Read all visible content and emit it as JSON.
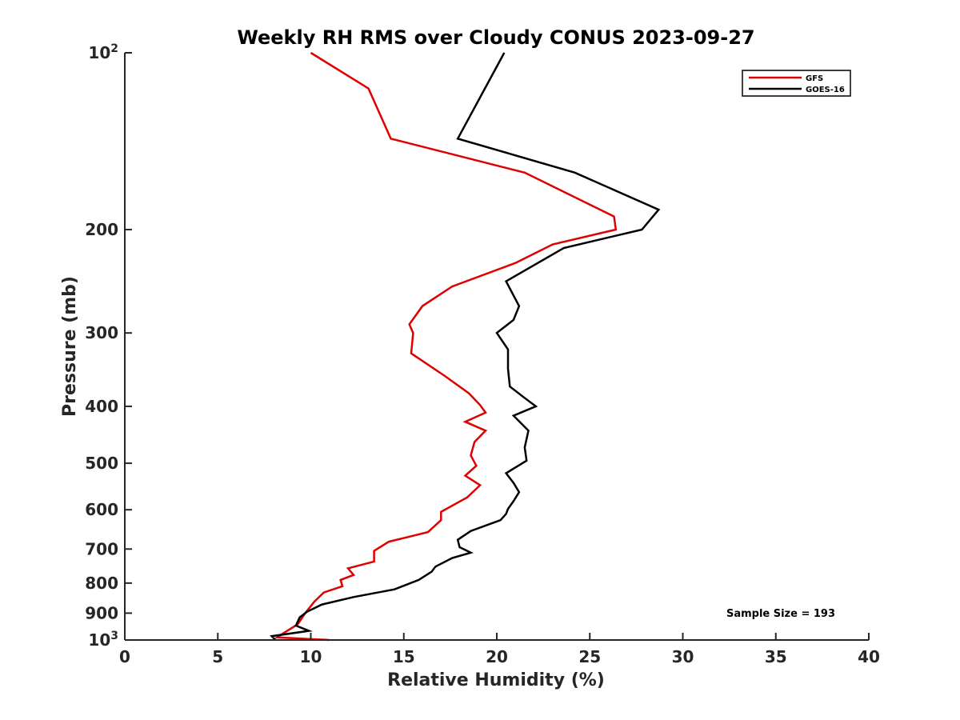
{
  "chart_data": {
    "type": "line",
    "title": "Weekly RH RMS over Cloudy CONUS 2023-09-27",
    "xlabel": "Relative Humidity (%)",
    "ylabel": "Pressure (mb)",
    "xlim": [
      0,
      40
    ],
    "ylim": [
      100,
      1000
    ],
    "yscale": "log",
    "y_reversed": true,
    "grid": false,
    "legend_position": "top-right",
    "xticks": [
      0,
      5,
      10,
      15,
      20,
      25,
      30,
      35,
      40
    ],
    "xtick_labels": [
      "0",
      "5",
      "10",
      "15",
      "20",
      "25",
      "30",
      "35",
      "40"
    ],
    "yticks": [
      {
        "value": 100,
        "label": "10",
        "sup": "2"
      },
      {
        "value": 200,
        "label": "200",
        "sup": ""
      },
      {
        "value": 300,
        "label": "300",
        "sup": ""
      },
      {
        "value": 400,
        "label": "400",
        "sup": ""
      },
      {
        "value": 500,
        "label": "500",
        "sup": ""
      },
      {
        "value": 600,
        "label": "600",
        "sup": ""
      },
      {
        "value": 700,
        "label": "700",
        "sup": ""
      },
      {
        "value": 800,
        "label": "800",
        "sup": ""
      },
      {
        "value": 900,
        "label": "900",
        "sup": ""
      },
      {
        "value": 1000,
        "label": "10",
        "sup": "3"
      }
    ],
    "series": [
      {
        "name": "GFS",
        "color": "#e00000",
        "x": [
          10.0,
          13.1,
          14.3,
          21.5,
          26.3,
          26.4,
          23.0,
          21.0,
          17.6,
          16.0,
          15.3,
          15.5,
          15.4,
          17.2,
          18.5,
          19.1,
          19.4,
          18.3,
          19.4,
          18.8,
          18.6,
          18.9,
          18.3,
          19.1,
          18.4,
          17.0,
          17.0,
          16.3,
          14.2,
          13.4,
          13.4,
          12.0,
          12.3,
          11.6,
          11.7,
          10.7,
          10.2,
          9.7,
          9.3,
          8.5,
          8.2,
          11.0
        ],
        "y": [
          100,
          115,
          140,
          160,
          190,
          200,
          212,
          228,
          250,
          270,
          290,
          300,
          325,
          355,
          380,
          398,
          410,
          425,
          440,
          460,
          485,
          505,
          525,
          545,
          572,
          605,
          625,
          655,
          680,
          705,
          735,
          755,
          775,
          790,
          810,
          830,
          860,
          900,
          940,
          975,
          990,
          1000
        ]
      },
      {
        "name": "GOES-16",
        "color": "#000000",
        "x": [
          20.4,
          17.9,
          24.2,
          28.7,
          27.8,
          23.6,
          20.5,
          21.2,
          20.9,
          20.0,
          20.6,
          20.6,
          20.7,
          21.4,
          22.1,
          20.9,
          21.7,
          21.5,
          21.6,
          20.5,
          20.9,
          21.2,
          20.9,
          20.6,
          20.5,
          20.2,
          18.6,
          17.9,
          18.0,
          18.6,
          17.6,
          16.7,
          16.5,
          15.8,
          14.5,
          12.3,
          10.6,
          9.8,
          9.4,
          9.2,
          9.9,
          7.9,
          8.1
        ],
        "y": [
          100,
          140,
          160,
          185,
          200,
          215,
          245,
          270,
          285,
          300,
          320,
          345,
          370,
          385,
          400,
          415,
          440,
          470,
          495,
          520,
          540,
          560,
          580,
          598,
          610,
          625,
          652,
          675,
          695,
          710,
          725,
          750,
          765,
          790,
          820,
          845,
          870,
          895,
          915,
          945,
          965,
          985,
          1000
        ]
      }
    ],
    "annotation": "Sample Size = 193"
  }
}
